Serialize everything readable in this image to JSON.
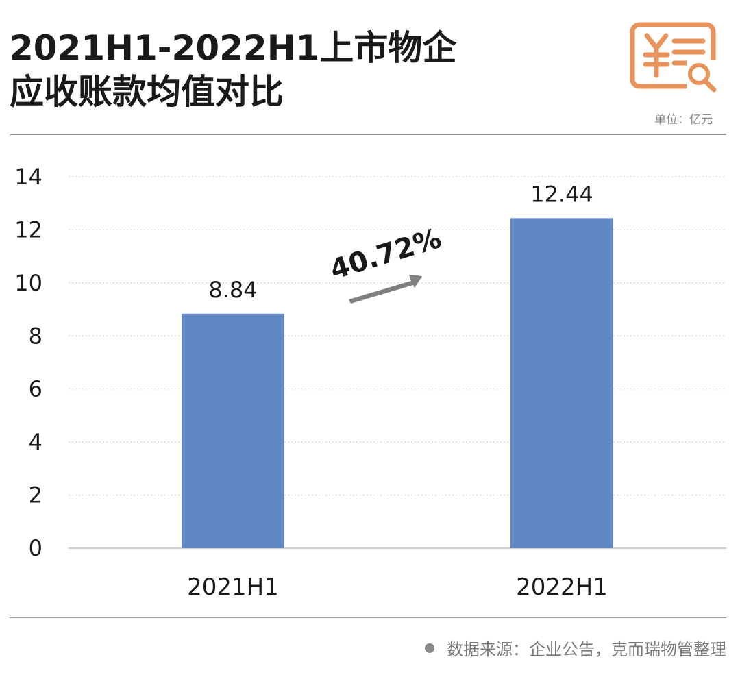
{
  "header": {
    "title_line1": "2021H1-2022H1上市物企",
    "title_line2": "应收账款均值对比",
    "unit": "单位：亿元",
    "logo_icon": "invoice-search-icon",
    "logo_color": "#E8935C"
  },
  "growth_annotation": "40.72%",
  "footer": {
    "source": "数据来源：企业公告，克而瑞物管整理"
  },
  "colors": {
    "bar": "#6287C5",
    "arrow": "#808080",
    "grid": "#c8c8c8"
  },
  "chart_data": {
    "type": "bar",
    "categories": [
      "2021H1",
      "2022H1"
    ],
    "values": [
      8.84,
      12.44
    ],
    "data_labels": [
      "8.84",
      "12.44"
    ],
    "title": "2021H1-2022H1上市物企应收账款均值对比",
    "xlabel": "",
    "ylabel": "",
    "ylim": [
      0,
      14
    ],
    "yticks": [
      0,
      2,
      4,
      6,
      8,
      10,
      12,
      14
    ],
    "grid": true,
    "legend": "none"
  }
}
